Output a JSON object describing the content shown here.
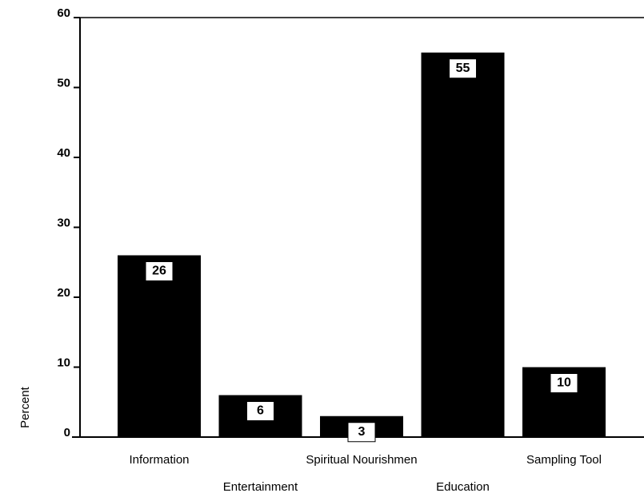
{
  "chart_data": {
    "type": "bar",
    "ylabel": "Percent",
    "categories": [
      "Information",
      "Entertainment",
      "Spiritual Nourishmen",
      "Education",
      "Sampling Tool"
    ],
    "values": [
      26,
      6,
      3,
      55,
      10
    ],
    "color": "#000000",
    "ylim": [
      0,
      60
    ],
    "yticks": [
      0,
      10,
      20,
      30,
      40,
      50,
      60
    ],
    "grid": false
  }
}
